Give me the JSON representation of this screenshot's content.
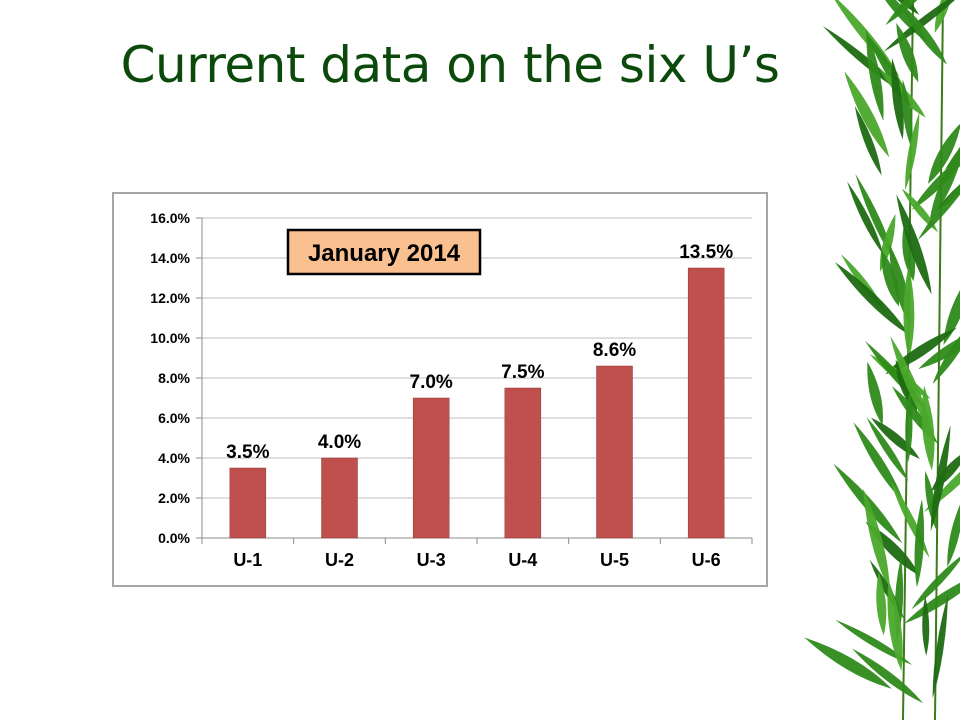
{
  "slide": {
    "title": "Current data on the six U’s"
  },
  "decoration": {
    "icon": "bamboo-leaves-icon",
    "colors": {
      "leaf_dark": "#1f6b12",
      "leaf_mid": "#2e8a1a",
      "leaf_light": "#4aa82a",
      "stem": "#3d7a1a"
    }
  },
  "colors": {
    "title": "#0b4a0b",
    "bar": "#c0504d",
    "bar_edge": "#8c3836",
    "grid": "#bfbfbf",
    "callout_fill": "#fac090",
    "callout_border": "#000000"
  },
  "chart_data": {
    "type": "bar",
    "title": "January 2014",
    "categories": [
      "U-1",
      "U-2",
      "U-3",
      "U-4",
      "U-5",
      "U-6"
    ],
    "values": [
      3.5,
      4.0,
      7.0,
      7.5,
      8.6,
      13.5
    ],
    "data_labels": [
      "3.5%",
      "4.0%",
      "7.0%",
      "7.5%",
      "8.6%",
      "13.5%"
    ],
    "y_ticks": [
      "0.0%",
      "2.0%",
      "4.0%",
      "6.0%",
      "8.0%",
      "10.0%",
      "12.0%",
      "14.0%",
      "16.0%"
    ],
    "ylim": [
      0,
      16
    ],
    "xlabel": "",
    "ylabel": "",
    "grid": true,
    "legend": "none"
  }
}
